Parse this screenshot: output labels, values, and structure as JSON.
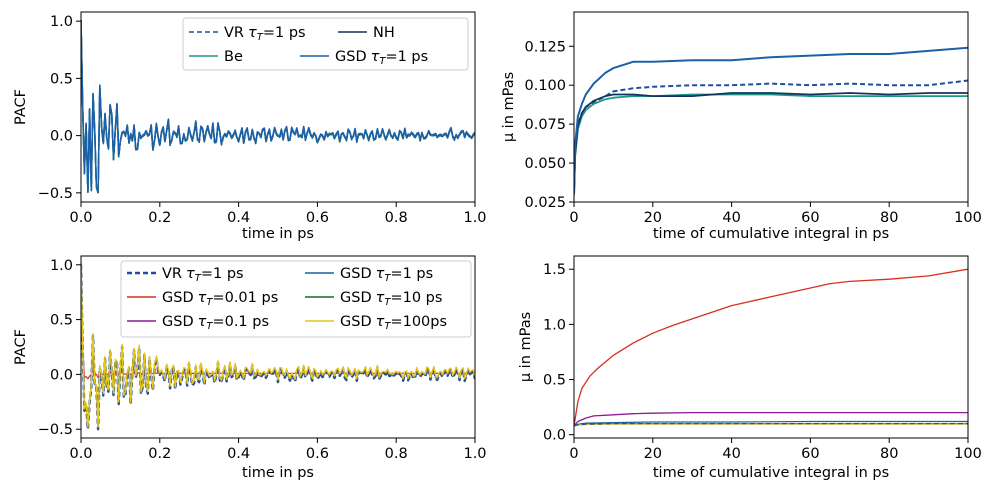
{
  "colors": {
    "vr": "#1f4e9c",
    "be": "#1b9a8a",
    "nh": "#12345c",
    "gsd1": "#1d5fa8",
    "gsd001": "#d7301f",
    "gsd01": "#8c1a96",
    "gsd10": "#1a6b1a",
    "gsd100": "#e6c619"
  },
  "chart_data": [
    {
      "id": "tl",
      "type": "line",
      "title": "",
      "xlabel": "time in ps",
      "ylabel": "PACF",
      "xlim": [
        0.0,
        1.0
      ],
      "ylim": [
        -0.58,
        1.08
      ],
      "xticks": [
        0.0,
        0.2,
        0.4,
        0.6,
        0.8,
        1.0
      ],
      "xtick_labels": [
        "0.0",
        "0.2",
        "0.4",
        "0.6",
        "0.8",
        "1.0"
      ],
      "yticks": [
        -0.5,
        0.0,
        0.5,
        1.0
      ],
      "ytick_labels": [
        "−0.5",
        "0.0",
        "0.5",
        "1.0"
      ],
      "legend_position": "top-right",
      "legend_columns": 2,
      "series": [
        {
          "name": "VR",
          "tau": "=1 ps",
          "color_key": "vr",
          "dash": "dashed",
          "width": 1.5,
          "kind": "pacf",
          "amp": 1.0
        },
        {
          "name": "NH",
          "tau": "",
          "color_key": "nh",
          "dash": "solid",
          "width": 1.5,
          "kind": "pacf",
          "amp": 1.0
        },
        {
          "name": "Be",
          "tau": "",
          "color_key": "be",
          "dash": "solid",
          "width": 1.5,
          "kind": "pacf",
          "amp": 1.0
        },
        {
          "name": "GSD",
          "tau": "=1 ps",
          "color_key": "gsd1",
          "dash": "solid",
          "width": 1.5,
          "kind": "pacf",
          "amp": 1.0
        }
      ]
    },
    {
      "id": "tr",
      "type": "line",
      "title": "",
      "xlabel": "time of cumulative integral in ps",
      "ylabel": "μ in mPas",
      "xlim": [
        0,
        100
      ],
      "ylim": [
        0.025,
        0.147
      ],
      "xticks": [
        0,
        20,
        40,
        60,
        80,
        100
      ],
      "xtick_labels": [
        "0",
        "20",
        "40",
        "60",
        "80",
        "100"
      ],
      "yticks": [
        0.025,
        0.05,
        0.075,
        0.1,
        0.125
      ],
      "ytick_labels": [
        "0.025",
        "0.050",
        "0.075",
        "0.100",
        "0.125"
      ],
      "series": [
        {
          "name": "VR τT=1 ps",
          "color_key": "vr",
          "dash": "dashed",
          "width": 2,
          "x": [
            0,
            0.3,
            1,
            2,
            3,
            5,
            8,
            10,
            15,
            20,
            30,
            40,
            50,
            60,
            70,
            80,
            90,
            100
          ],
          "y": [
            0.03,
            0.058,
            0.075,
            0.082,
            0.086,
            0.089,
            0.093,
            0.096,
            0.098,
            0.099,
            0.1,
            0.1,
            0.101,
            0.1,
            0.101,
            0.1,
            0.1,
            0.103
          ]
        },
        {
          "name": "Be",
          "color_key": "be",
          "dash": "solid",
          "width": 1.8,
          "x": [
            0,
            0.3,
            1,
            2,
            3,
            5,
            8,
            10,
            15,
            20,
            30,
            40,
            50,
            60,
            70,
            80,
            90,
            100
          ],
          "y": [
            0.03,
            0.055,
            0.072,
            0.08,
            0.084,
            0.088,
            0.091,
            0.092,
            0.093,
            0.093,
            0.094,
            0.094,
            0.094,
            0.093,
            0.093,
            0.093,
            0.093,
            0.093
          ]
        },
        {
          "name": "NH",
          "color_key": "nh",
          "dash": "solid",
          "width": 1.8,
          "x": [
            0,
            0.3,
            1,
            2,
            3,
            5,
            8,
            10,
            15,
            20,
            30,
            40,
            50,
            60,
            70,
            80,
            90,
            100
          ],
          "y": [
            0.03,
            0.056,
            0.074,
            0.082,
            0.086,
            0.09,
            0.093,
            0.094,
            0.094,
            0.093,
            0.093,
            0.095,
            0.095,
            0.094,
            0.095,
            0.094,
            0.095,
            0.095
          ]
        },
        {
          "name": "GSD τT=1 ps",
          "color_key": "gsd1",
          "dash": "solid",
          "width": 2,
          "x": [
            0,
            0.3,
            1,
            2,
            3,
            5,
            8,
            10,
            15,
            20,
            30,
            40,
            50,
            60,
            70,
            80,
            90,
            100
          ],
          "y": [
            0.03,
            0.062,
            0.08,
            0.088,
            0.094,
            0.101,
            0.108,
            0.111,
            0.115,
            0.115,
            0.116,
            0.116,
            0.118,
            0.119,
            0.12,
            0.12,
            0.122,
            0.124
          ]
        }
      ]
    },
    {
      "id": "bl",
      "type": "line",
      "title": "",
      "xlabel": "time in ps",
      "ylabel": "PACF",
      "xlim": [
        0.0,
        1.0
      ],
      "ylim": [
        -0.58,
        1.08
      ],
      "xticks": [
        0.0,
        0.2,
        0.4,
        0.6,
        0.8,
        1.0
      ],
      "xtick_labels": [
        "0.0",
        "0.2",
        "0.4",
        "0.6",
        "0.8",
        "1.0"
      ],
      "yticks": [
        -0.5,
        0.0,
        0.5,
        1.0
      ],
      "ytick_labels": [
        "−0.5",
        "0.0",
        "0.5",
        "1.0"
      ],
      "legend_position": "top-right",
      "legend_columns": 2,
      "series": [
        {
          "name": "VR",
          "tau": "=1 ps",
          "color_key": "vr",
          "dash": "dashed",
          "width": 2.4,
          "kind": "pacf2",
          "amp": 1.0
        },
        {
          "name": "GSD",
          "tau": "=0.01 ps",
          "color_key": "gsd001",
          "dash": "solid",
          "width": 1.2,
          "kind": "pacfdamp",
          "amp": 0.12
        },
        {
          "name": "GSD",
          "tau": "=0.1 ps",
          "color_key": "gsd01",
          "dash": "solid",
          "width": 1.2,
          "kind": "pacf2",
          "amp": 0.97
        },
        {
          "name": "GSD",
          "tau": "=1 ps",
          "color_key": "gsd1",
          "dash": "solid",
          "width": 1.2,
          "kind": "pacf2",
          "amp": 1.0
        },
        {
          "name": "GSD",
          "tau": "=10 ps",
          "color_key": "gsd10",
          "dash": "solid",
          "width": 1.2,
          "kind": "pacf2",
          "amp": 1.0
        },
        {
          "name": "GSD",
          "tau": "=100ps",
          "color_key": "gsd100",
          "dash": "solid",
          "width": 1.4,
          "kind": "pacf2",
          "amp": 1.0
        }
      ]
    },
    {
      "id": "br",
      "type": "line",
      "title": "",
      "xlabel": "time of cumulative integral in ps",
      "ylabel": "μ in mPas",
      "xlim": [
        0,
        100
      ],
      "ylim": [
        -0.03,
        1.62
      ],
      "xticks": [
        0,
        20,
        40,
        60,
        80,
        100
      ],
      "xtick_labels": [
        "0",
        "20",
        "40",
        "60",
        "80",
        "100"
      ],
      "yticks": [
        0.0,
        0.5,
        1.0,
        1.5
      ],
      "ytick_labels": [
        "0.0",
        "0.5",
        "1.0",
        "1.5"
      ],
      "series": [
        {
          "name": "GSD τT=0.01 ps",
          "color_key": "gsd001",
          "dash": "solid",
          "width": 1.3,
          "x": [
            0,
            1,
            2,
            4,
            6,
            8,
            10,
            15,
            20,
            25,
            30,
            35,
            40,
            50,
            60,
            65,
            70,
            80,
            90,
            100
          ],
          "y": [
            0.08,
            0.3,
            0.42,
            0.53,
            0.6,
            0.66,
            0.72,
            0.83,
            0.92,
            0.99,
            1.05,
            1.11,
            1.17,
            1.25,
            1.33,
            1.37,
            1.39,
            1.41,
            1.44,
            1.5
          ]
        },
        {
          "name": "GSD τT=0.1 ps",
          "color_key": "gsd01",
          "dash": "solid",
          "width": 1.3,
          "x": [
            0,
            1,
            3,
            5,
            10,
            15,
            20,
            30,
            40,
            50,
            60,
            70,
            80,
            90,
            100
          ],
          "y": [
            0.08,
            0.12,
            0.15,
            0.17,
            0.18,
            0.19,
            0.195,
            0.2,
            0.2,
            0.2,
            0.2,
            0.2,
            0.2,
            0.2,
            0.2
          ]
        },
        {
          "name": "GSD τT=1 ps",
          "color_key": "gsd1",
          "dash": "solid",
          "width": 1.2,
          "x": [
            0,
            1,
            3,
            10,
            20,
            40,
            60,
            80,
            100
          ],
          "y": [
            0.08,
            0.095,
            0.105,
            0.11,
            0.115,
            0.115,
            0.12,
            0.12,
            0.12
          ]
        },
        {
          "name": "GSD τT=10 ps",
          "color_key": "gsd10",
          "dash": "solid",
          "width": 1.2,
          "x": [
            0,
            1,
            3,
            10,
            20,
            40,
            60,
            80,
            100
          ],
          "y": [
            0.08,
            0.09,
            0.095,
            0.1,
            0.1,
            0.1,
            0.1,
            0.1,
            0.1
          ]
        },
        {
          "name": "GSD τT=100ps",
          "color_key": "gsd100",
          "dash": "solid",
          "width": 1.2,
          "x": [
            0,
            1,
            3,
            10,
            20,
            40,
            60,
            80,
            100
          ],
          "y": [
            0.08,
            0.088,
            0.092,
            0.095,
            0.095,
            0.095,
            0.095,
            0.095,
            0.095
          ]
        },
        {
          "name": "VR τT=1 ps",
          "color_key": "vr",
          "dash": "dashed",
          "width": 1.2,
          "x": [
            0,
            1,
            3,
            10,
            20,
            40,
            60,
            80,
            100
          ],
          "y": [
            0.08,
            0.09,
            0.095,
            0.1,
            0.1,
            0.1,
            0.1,
            0.1,
            0.1
          ]
        }
      ]
    }
  ]
}
